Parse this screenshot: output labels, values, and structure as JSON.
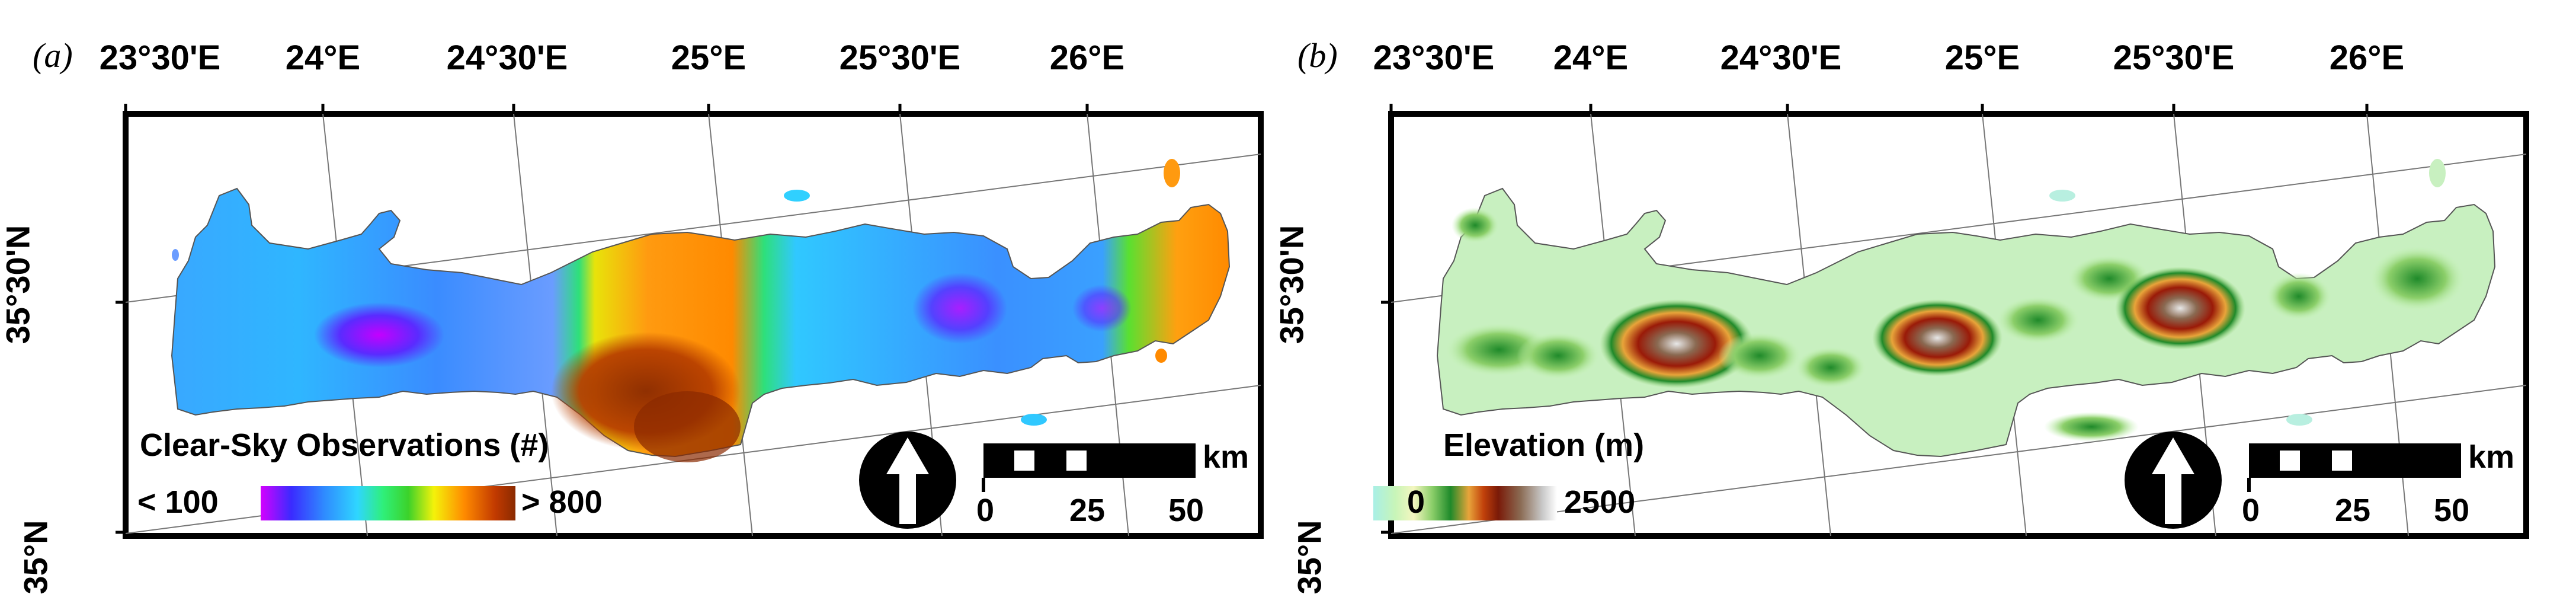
{
  "panels": [
    {
      "letter": "(a)",
      "lon_ticks": [
        "23°30'E",
        "24°E",
        "24°30'E",
        "25°E",
        "25°30'E",
        "26°E"
      ],
      "lat_ticks": [
        "35°30'N",
        "35°N"
      ],
      "legend": {
        "title": "Clear-Sky Observations (#)",
        "min_label": "< 100",
        "max_label": "> 800",
        "colors": [
          "#d400ff",
          "#3a2bff",
          "#2f8bff",
          "#2fd6ff",
          "#2ff07a",
          "#3cd22a",
          "#f4f20a",
          "#ff8a00",
          "#c23a00",
          "#8a2a00"
        ]
      },
      "scale_bar": {
        "unit": "km",
        "ticks": [
          "0",
          "25",
          "50"
        ]
      }
    },
    {
      "letter": "(b)",
      "lon_ticks": [
        "23°30'E",
        "24°E",
        "24°30'E",
        "25°E",
        "25°30'E",
        "26°E"
      ],
      "lat_ticks": [
        "35°30'N",
        "35°N"
      ],
      "legend": {
        "title": "Elevation (m)",
        "min_label": "0",
        "max_label": "2500",
        "colors": [
          "#a8efe6",
          "#c8f5b8",
          "#f4f6c0",
          "#8ccf6a",
          "#1f8a2a",
          "#e8a43a",
          "#c2410b",
          "#7a1a08",
          "#8a6a52",
          "#c8c8c8",
          "#ffffff"
        ]
      },
      "scale_bar": {
        "unit": "km",
        "ticks": [
          "0",
          "25",
          "50"
        ]
      }
    }
  ]
}
